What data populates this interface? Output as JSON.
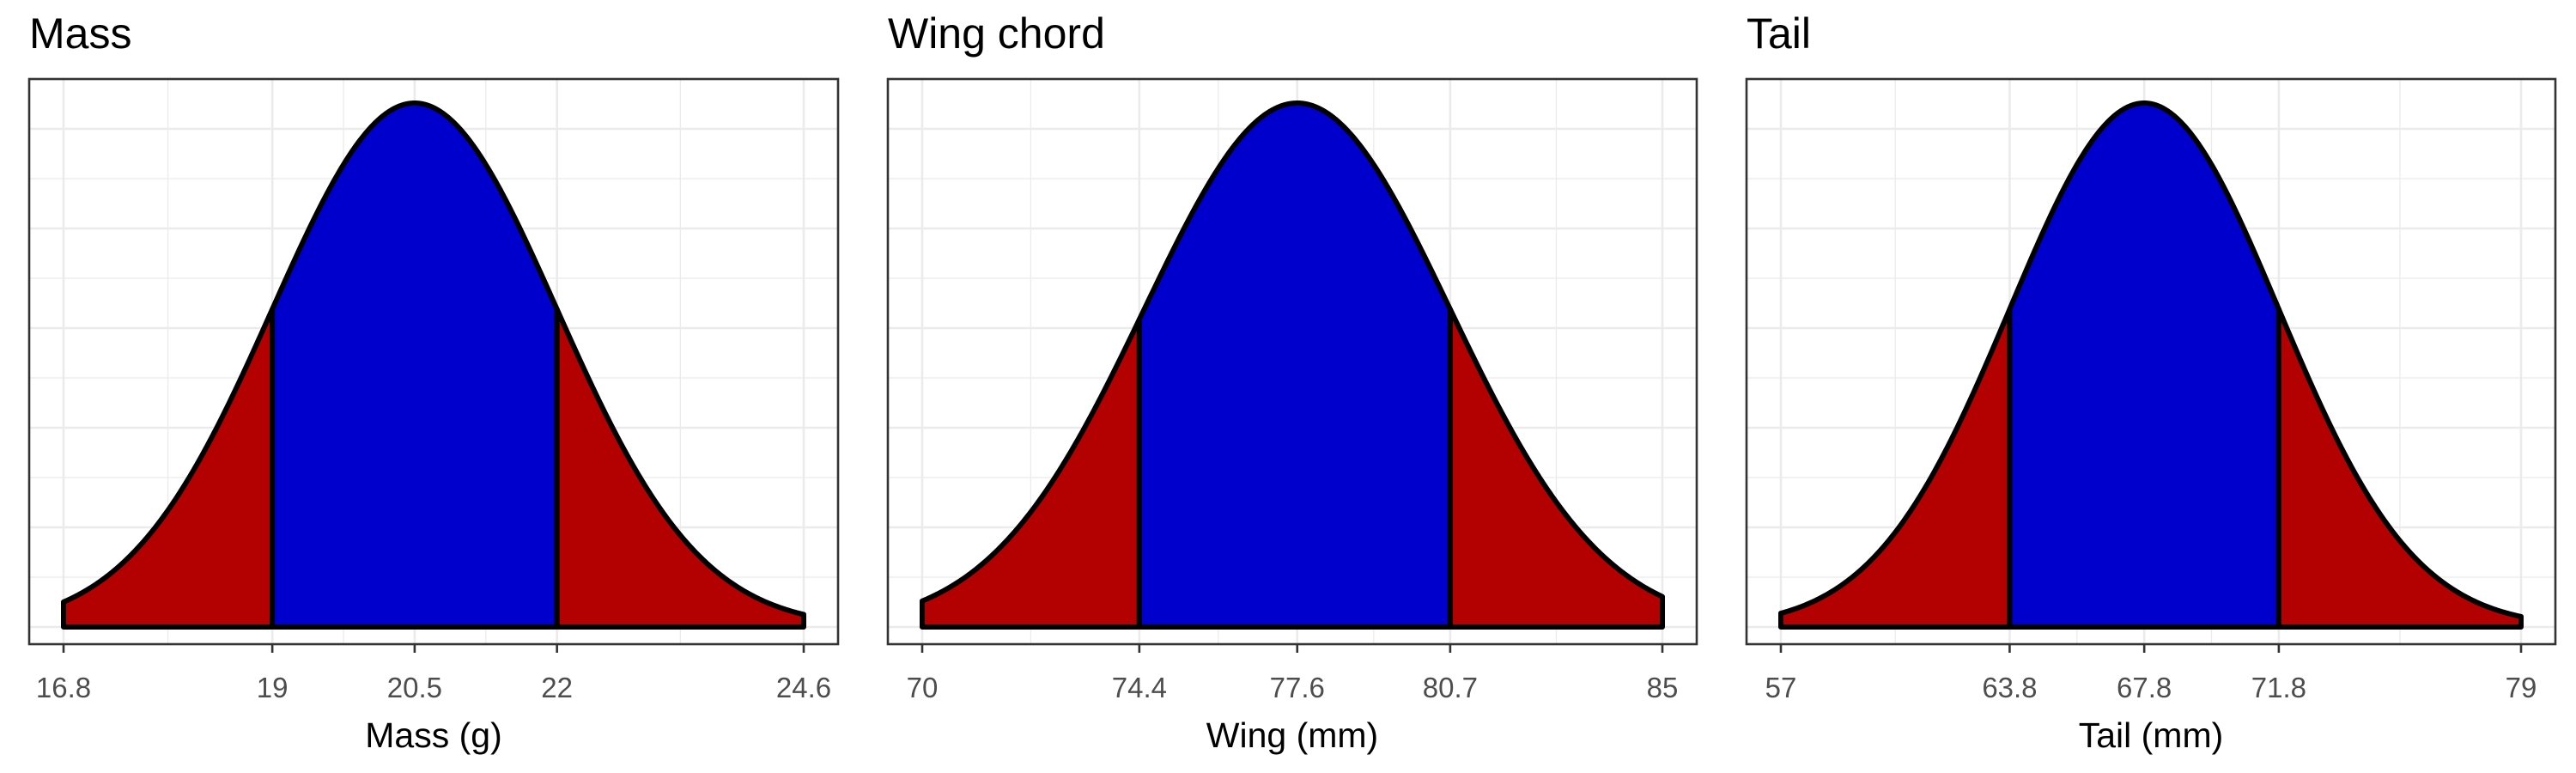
{
  "colors": {
    "tail_fill": "#b30000",
    "center_fill": "#0000cc",
    "outline": "#000000",
    "grid": "#ebebeb",
    "panel_border": "#333333"
  },
  "chart_data": [
    {
      "type": "area",
      "title": "Mass",
      "xlabel": "Mass (g)",
      "ylabel": "",
      "mean": 20.5,
      "sd": 1.5,
      "xlim": [
        16.8,
        24.6
      ],
      "x_ticks": [
        16.8,
        19,
        20.5,
        22,
        24.6
      ],
      "x_tick_labels": [
        "16.8",
        "19",
        "20.5",
        "22",
        "24.6"
      ],
      "central_interval": [
        19,
        22
      ],
      "grid": true
    },
    {
      "type": "area",
      "title": "Wing chord",
      "xlabel": "Wing (mm)",
      "ylabel": "",
      "mean": 77.6,
      "sd": 3.1,
      "xlim": [
        70,
        85
      ],
      "x_ticks": [
        70,
        74.4,
        77.6,
        80.7,
        85
      ],
      "x_tick_labels": [
        "70",
        "74.4",
        "77.6",
        "80.7",
        "85"
      ],
      "central_interval": [
        74.4,
        80.7
      ],
      "grid": true
    },
    {
      "type": "area",
      "title": "Tail",
      "xlabel": "Tail (mm)",
      "ylabel": "",
      "mean": 67.8,
      "sd": 4.0,
      "xlim": [
        57,
        79
      ],
      "x_ticks": [
        57,
        63.8,
        67.8,
        71.8,
        79
      ],
      "x_tick_labels": [
        "57",
        "63.8",
        "67.8",
        "71.8",
        "79"
      ],
      "central_interval": [
        63.8,
        71.8
      ],
      "grid": true
    }
  ]
}
